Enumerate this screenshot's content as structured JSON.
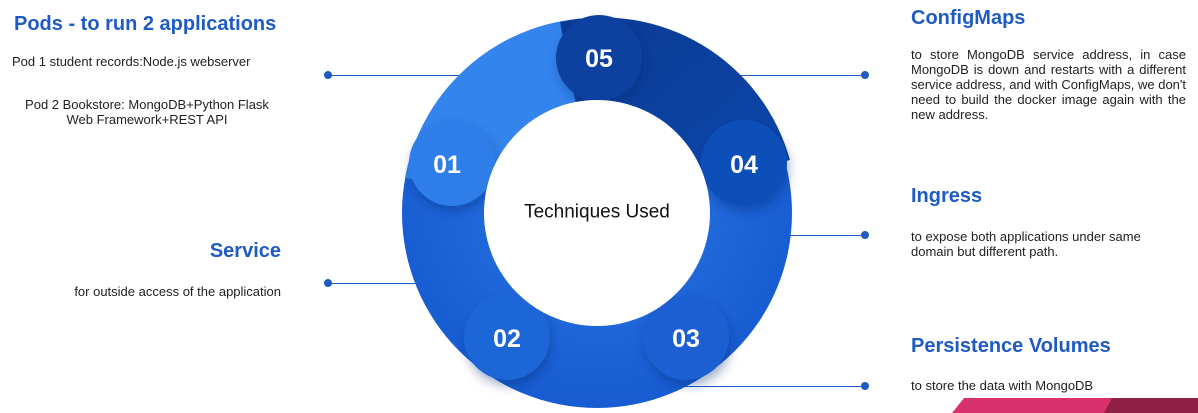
{
  "center_label": "Techniques Used",
  "items": [
    {
      "number": "01",
      "title": "Pods - to run 2 applications",
      "lines": [
        "Pod 1 student records:Node.js webserver",
        "Pod 2 Bookstore: MongoDB+Python Flask",
        "Web Framework+REST API"
      ]
    },
    {
      "number": "02",
      "title": "Service",
      "lines": [
        "for outside access of the application"
      ]
    },
    {
      "number": "03",
      "title": "Persistence Volumes",
      "lines": [
        "to store the data with MongoDB"
      ]
    },
    {
      "number": "04",
      "title": "Ingress",
      "lines": [
        "to expose both applications under same",
        "domain but different path."
      ]
    },
    {
      "number": "05",
      "title": "ConfigMaps",
      "lines": [
        "to store MongoDB service address, in case MongoDB is down and restarts with a different service address, and with ConfigMaps, we don't need to build the docker image again with the new address."
      ]
    }
  ],
  "colors": {
    "ring_light": "#2f7de8",
    "ring_mid": "#1a63d6",
    "ring_dark": "#0d3f9c",
    "accent": "#1f5bc4",
    "corner_pink": "#d8306a",
    "corner_maroon": "#8e1f45"
  }
}
